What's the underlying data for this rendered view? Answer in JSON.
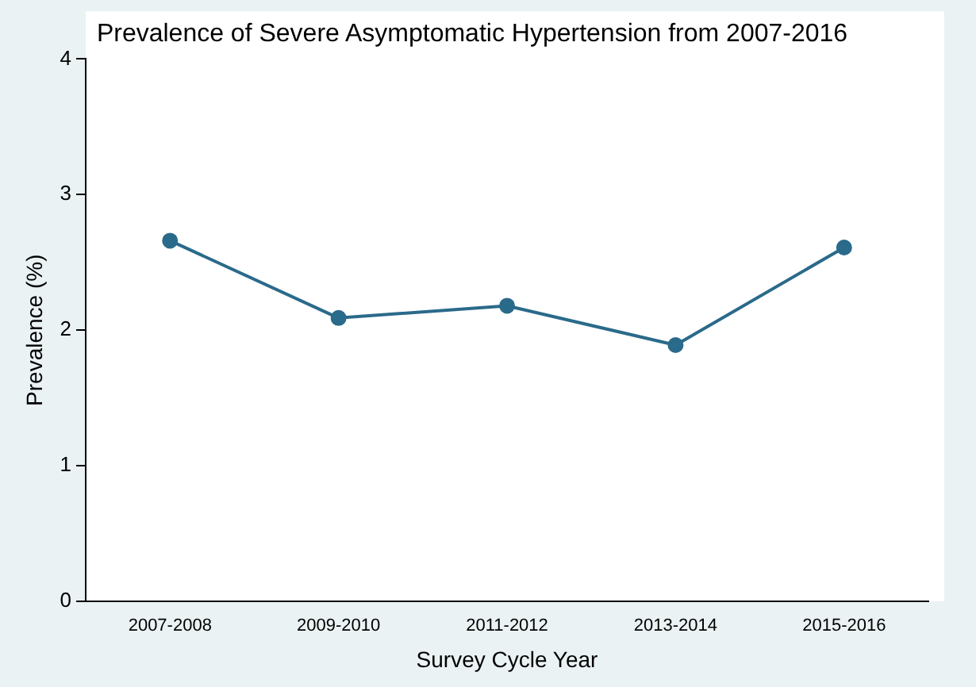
{
  "chart_data": {
    "type": "line",
    "title": "Prevalence of Severe Asymptomatic Hypertension from 2007-2016",
    "xlabel": "Survey Cycle Year",
    "ylabel": "Prevalence (%)",
    "categories": [
      "2007-2008",
      "2009-2010",
      "2011-2012",
      "2013-2014",
      "2015-2016"
    ],
    "series": [
      {
        "color": "#2a6a8a",
        "values": [
          2.66,
          2.09,
          2.18,
          1.89,
          2.61
        ]
      }
    ],
    "ylim": [
      0,
      4
    ],
    "yticks": [
      0,
      1,
      2,
      3,
      4
    ],
    "grid": false,
    "legend": false,
    "marker": "circle",
    "line_style": "solid"
  }
}
